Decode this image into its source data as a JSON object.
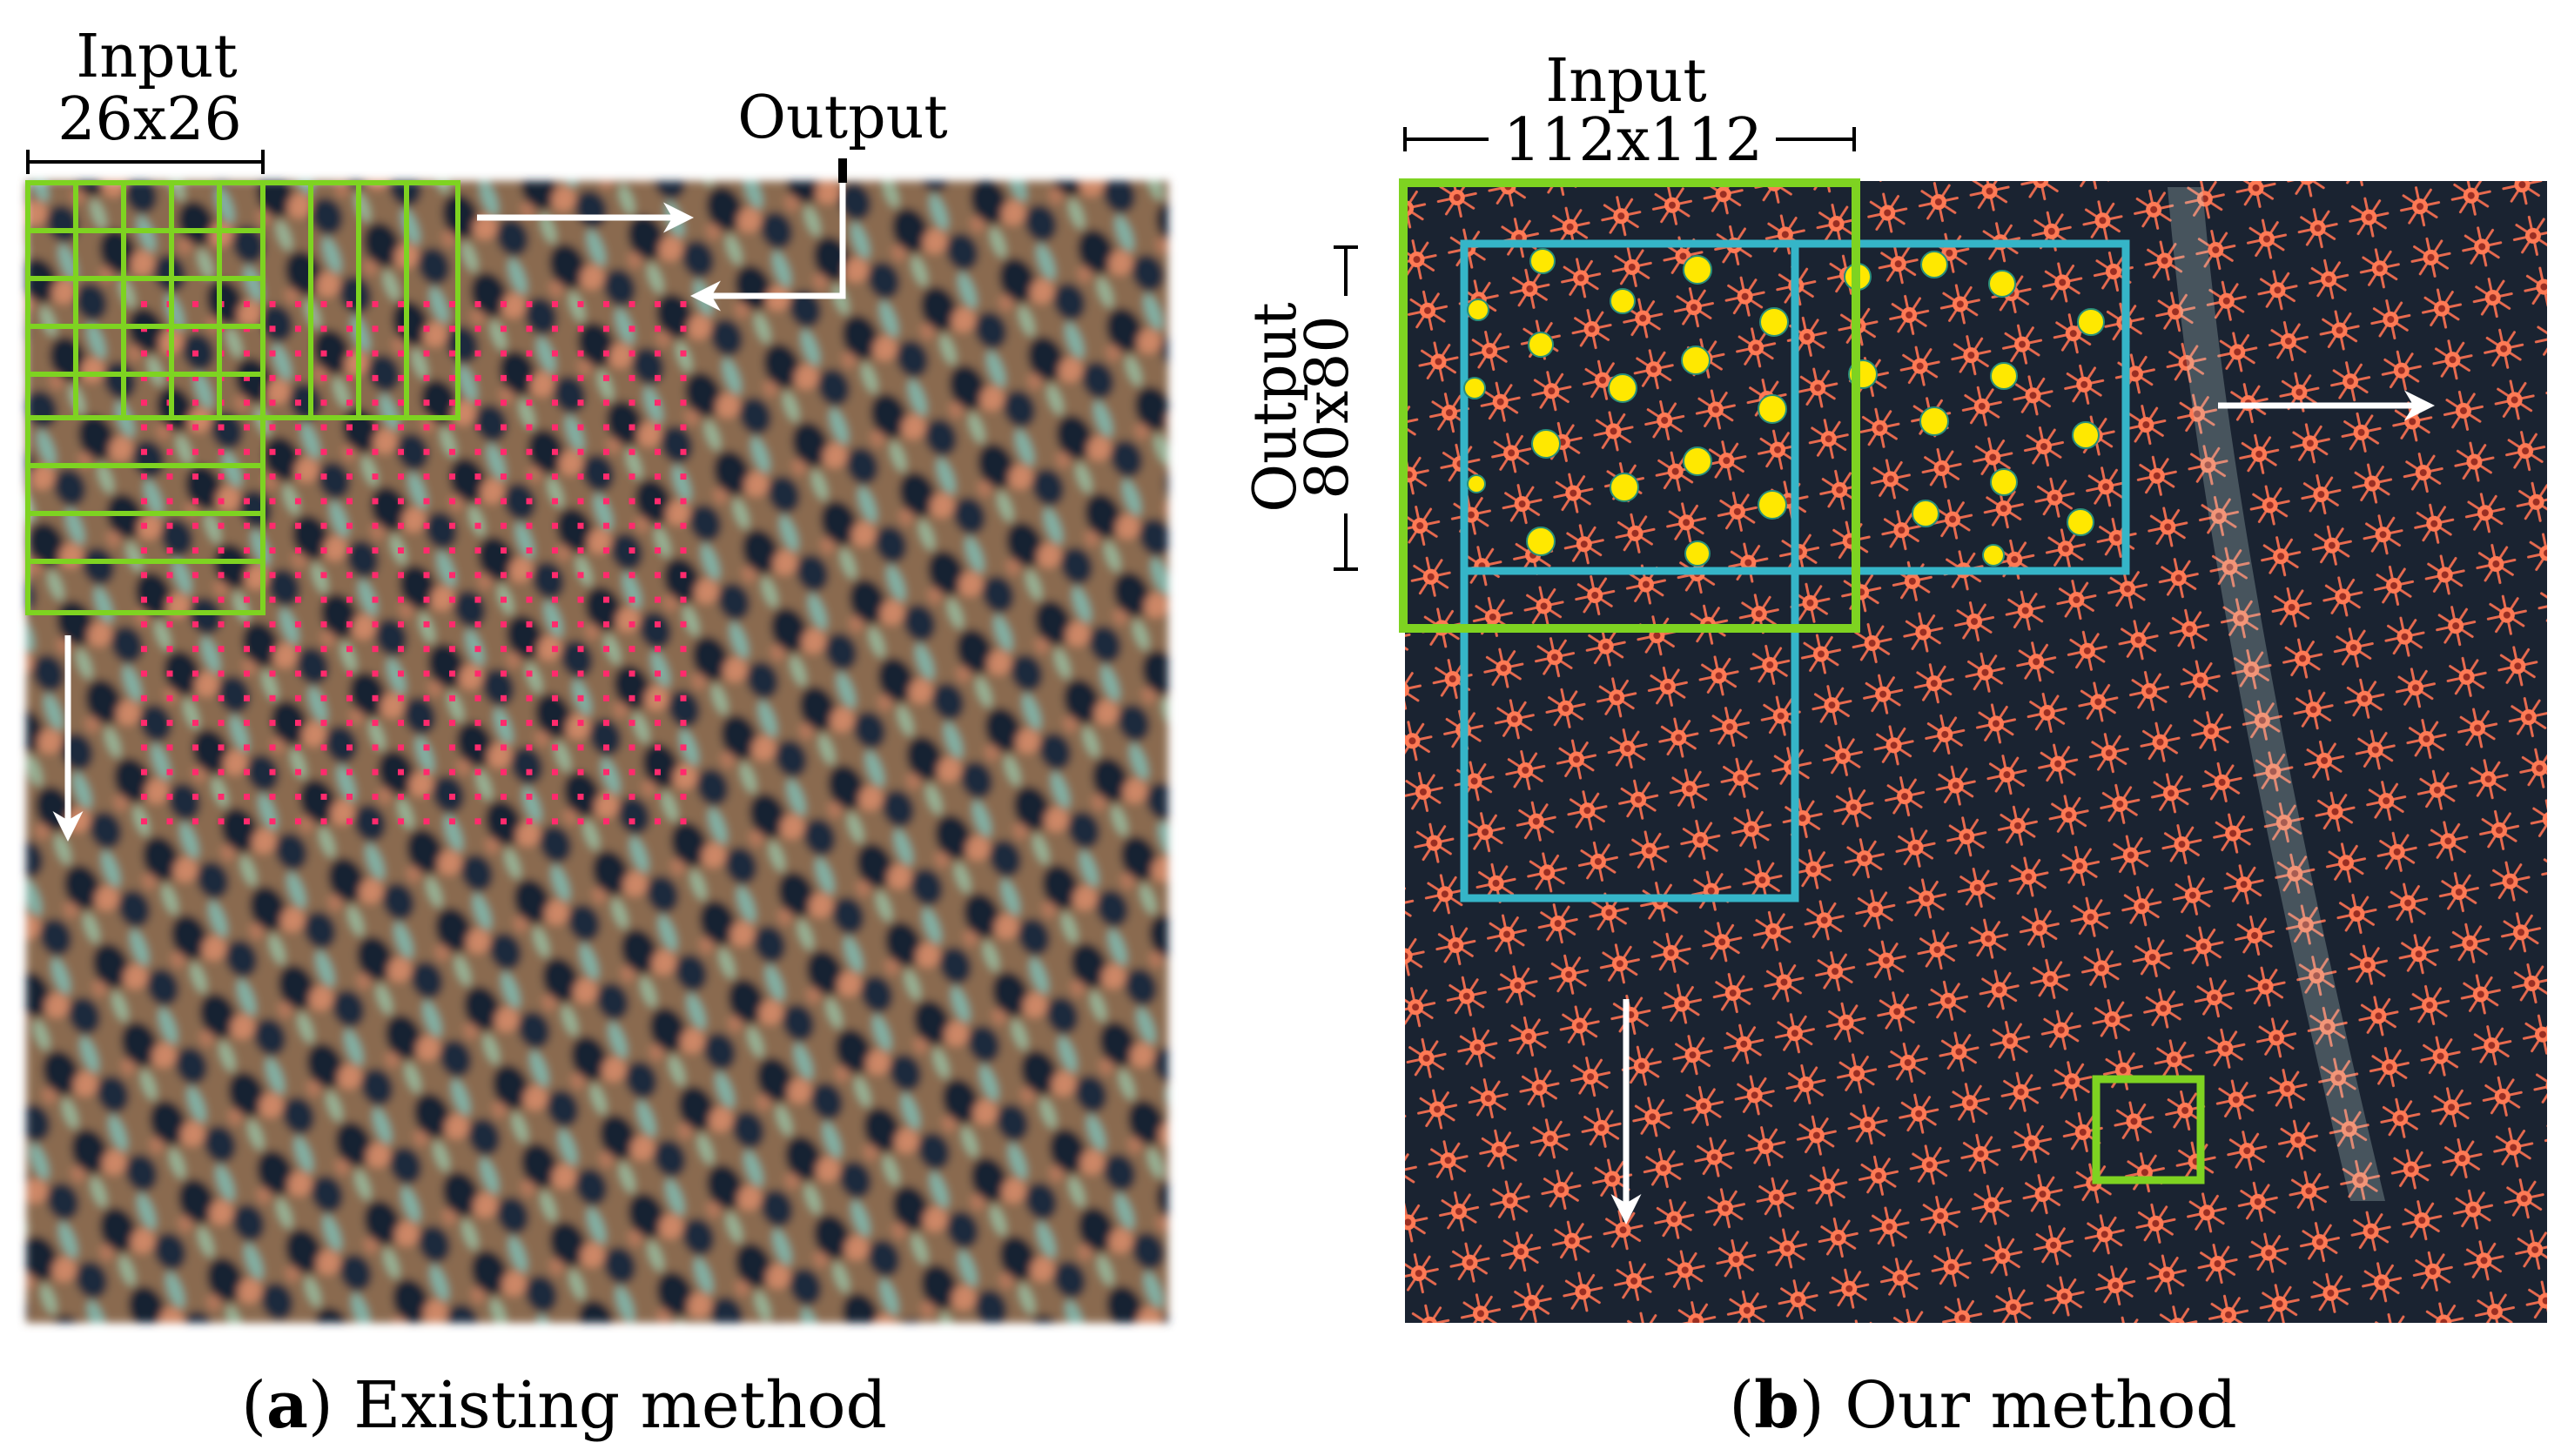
{
  "colors": {
    "input_box": "#7ed321",
    "output_box": "#35b5c8",
    "dot_red": "#ff2a6d",
    "detection": "#ffe800",
    "arrow": "#ffffff",
    "tree_bg_a": "#a0704c",
    "tree_bg_b": "#1e2c3c",
    "tree_crown": "#ff6b4a"
  },
  "panel_a": {
    "input_label": "Input",
    "input_size": "26x26",
    "output_label": "Output",
    "caption_letter": "a",
    "caption_text": "Existing method"
  },
  "panel_b": {
    "input_label": "Input",
    "input_size": "112x112",
    "output_label": "Output",
    "output_size": "80x80",
    "caption_letter": "b",
    "caption_text": "Our method"
  }
}
